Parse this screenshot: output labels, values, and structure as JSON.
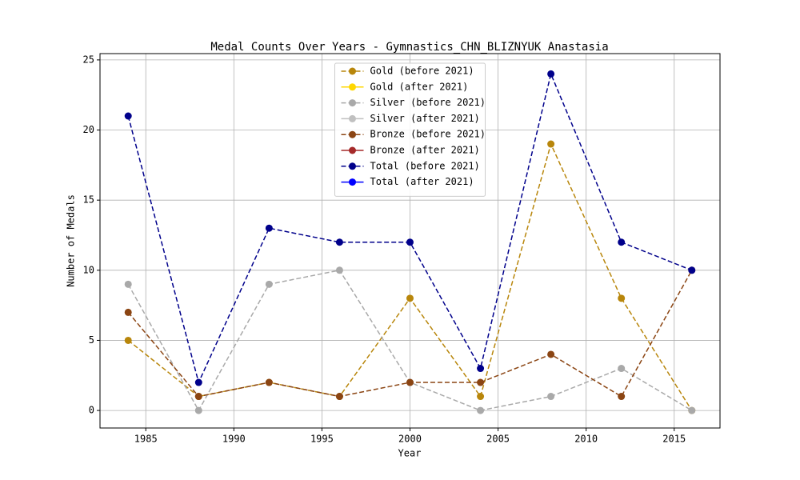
{
  "chart_data": {
    "type": "line",
    "title": "Medal Counts Over Years - Gymnastics_CHN_BLIZNYUK Anastasia",
    "xlabel": "Year",
    "ylabel": "Number of Medals",
    "x": [
      1984,
      1988,
      1992,
      1996,
      2000,
      2004,
      2008,
      2012,
      2016
    ],
    "series": [
      {
        "name": "Gold (before 2021)",
        "color": "#b8860b",
        "linestyle": "dashed",
        "values": [
          5,
          1,
          2,
          1,
          8,
          1,
          19,
          8,
          0
        ]
      },
      {
        "name": "Gold (after 2021)",
        "color": "#ffd700",
        "linestyle": "solid",
        "values": [
          null,
          null,
          null,
          null,
          null,
          null,
          null,
          null,
          null
        ]
      },
      {
        "name": "Silver (before 2021)",
        "color": "#a9a9a9",
        "linestyle": "dashed",
        "values": [
          9,
          0,
          9,
          10,
          2,
          0,
          1,
          3,
          0
        ]
      },
      {
        "name": "Silver (after 2021)",
        "color": "#c0c0c0",
        "linestyle": "solid",
        "values": [
          null,
          null,
          null,
          null,
          null,
          null,
          null,
          null,
          null
        ]
      },
      {
        "name": "Bronze (before 2021)",
        "color": "#8b4513",
        "linestyle": "dashed",
        "values": [
          7,
          1,
          2,
          1,
          2,
          2,
          4,
          1,
          10
        ]
      },
      {
        "name": "Bronze (after 2021)",
        "color": "#a52a2a",
        "linestyle": "solid",
        "values": [
          null,
          null,
          null,
          null,
          null,
          null,
          null,
          null,
          null
        ]
      },
      {
        "name": "Total (before 2021)",
        "color": "#00008b",
        "linestyle": "dashed",
        "values": [
          21,
          2,
          13,
          12,
          12,
          3,
          24,
          12,
          10
        ]
      },
      {
        "name": "Total (after 2021)",
        "color": "#0000ff",
        "linestyle": "solid",
        "values": [
          null,
          null,
          null,
          null,
          null,
          null,
          null,
          null,
          null
        ]
      }
    ],
    "xlim": [
      1982.4,
      2017.6
    ],
    "xticks": [
      1985,
      1990,
      1995,
      2000,
      2005,
      2010,
      2015
    ],
    "ylim": [
      -1.25,
      25.45
    ],
    "yticks": [
      0,
      5,
      10,
      15,
      20,
      25
    ],
    "grid": true,
    "legend": "upper center"
  }
}
